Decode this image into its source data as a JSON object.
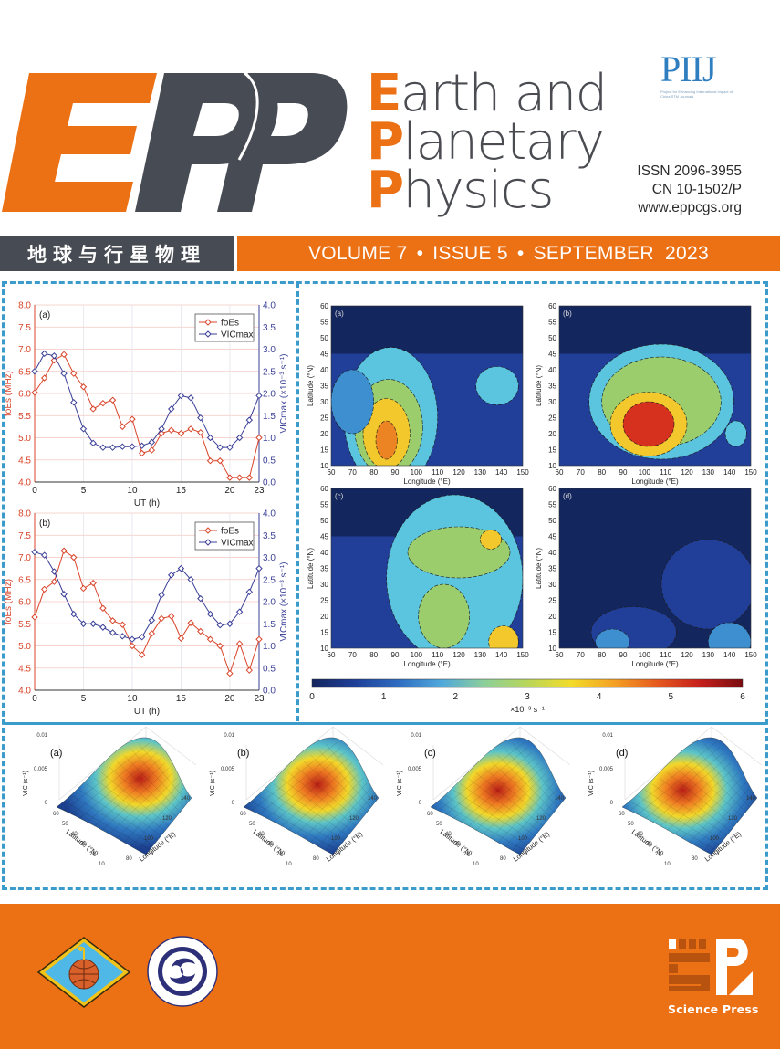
{
  "masthead": {
    "logo_text": "EPP",
    "title_lines": [
      {
        "initial": "E",
        "rest": "arth and"
      },
      {
        "initial": "P",
        "rest": "lanetary"
      },
      {
        "initial": "P",
        "rest": "hysics"
      }
    ],
    "piij_mark": "PIIJ",
    "piij_subtitle": "Project for Enhancing International Impact of China STM Journals",
    "issn": "ISSN 2096-3955",
    "cn": "CN 10-1502/P",
    "website": "www.eppcgs.org"
  },
  "band": {
    "chinese_title": "地球与行星物理",
    "volume": "VOLUME 7",
    "issue": "ISSUE 5",
    "date": "SEPTEMBER  2023",
    "separator": "•"
  },
  "colors": {
    "brand_orange": "#ec7014",
    "brand_gray": "#474b53",
    "frame_blue": "#3b9ccc",
    "foEs_red": "#d9452b",
    "vic_blue": "#3a3f96"
  },
  "footer": {
    "publisher": "Science Press",
    "emblem_1": "Geophysical Society emblem",
    "emblem_2": "Institute of Geology and Geophysics, CAS emblem"
  },
  "chart_data": [
    {
      "type": "line",
      "panel": "(a)",
      "x": [
        0,
        1,
        2,
        3,
        4,
        5,
        6,
        7,
        8,
        9,
        10,
        11,
        12,
        13,
        14,
        15,
        16,
        17,
        18,
        19,
        20,
        21,
        22,
        23
      ],
      "xlabel": "UT (h)",
      "xticks": [
        "0",
        "5",
        "10",
        "15",
        "20",
        "23"
      ],
      "ylabel_left": "foEs (MHz)",
      "ylim_left": [
        4.0,
        8.0
      ],
      "yticks_left": [
        "4.0",
        "4.5",
        "5.0",
        "5.5",
        "6.0",
        "6.5",
        "7.0",
        "7.5",
        "8.0"
      ],
      "ylabel_right": "VICmax (×10⁻³ s⁻¹)",
      "ylim_right": [
        0.0,
        4.0
      ],
      "yticks_right": [
        "0.0",
        "0.5",
        "1.0",
        "1.5",
        "2.0",
        "2.5",
        "3.0",
        "3.5",
        "4.0"
      ],
      "legend": [
        "foEs",
        "VICmax"
      ],
      "legend_position": "upper right",
      "grid": true,
      "series": [
        {
          "name": "foEs",
          "axis": "left",
          "values": [
            6.02,
            6.35,
            6.75,
            6.88,
            6.45,
            6.15,
            5.65,
            5.78,
            5.85,
            5.25,
            5.42,
            4.65,
            4.72,
            5.1,
            5.17,
            5.1,
            5.2,
            5.12,
            4.48,
            4.48,
            4.1,
            4.1,
            4.1,
            5.0
          ]
        },
        {
          "name": "VICmax",
          "axis": "right",
          "values": [
            2.5,
            2.9,
            2.85,
            2.45,
            1.8,
            1.2,
            0.88,
            0.78,
            0.78,
            0.8,
            0.8,
            0.82,
            0.9,
            1.2,
            1.65,
            1.95,
            1.9,
            1.45,
            1.0,
            0.78,
            0.78,
            1.0,
            1.4,
            1.95
          ]
        }
      ]
    },
    {
      "type": "line",
      "panel": "(b)",
      "x": [
        0,
        1,
        2,
        3,
        4,
        5,
        6,
        7,
        8,
        9,
        10,
        11,
        12,
        13,
        14,
        15,
        16,
        17,
        18,
        19,
        20,
        21,
        22,
        23
      ],
      "xlabel": "UT (h)",
      "xticks": [
        "0",
        "5",
        "10",
        "15",
        "20",
        "23"
      ],
      "ylabel_left": "foEs (MHz)",
      "ylim_left": [
        4.0,
        8.0
      ],
      "yticks_left": [
        "4.0",
        "4.5",
        "5.0",
        "5.5",
        "6.0",
        "6.5",
        "7.0",
        "7.5",
        "8.0"
      ],
      "ylabel_right": "VICmax (×10⁻³ s⁻¹)",
      "ylim_right": [
        0.0,
        4.0
      ],
      "yticks_right": [
        "0.0",
        "0.5",
        "1.0",
        "1.5",
        "2.0",
        "2.5",
        "3.0",
        "3.5",
        "4.0"
      ],
      "legend": [
        "foEs",
        "VICmax"
      ],
      "legend_position": "upper right",
      "grid": true,
      "series": [
        {
          "name": "foEs",
          "axis": "left",
          "values": [
            5.65,
            6.28,
            6.45,
            7.15,
            7.0,
            6.3,
            6.42,
            5.85,
            5.57,
            5.48,
            5.0,
            4.8,
            5.28,
            5.62,
            5.67,
            5.17,
            5.52,
            5.33,
            5.15,
            5.0,
            4.38,
            5.05,
            4.45,
            5.15
          ]
        },
        {
          "name": "VICmax",
          "axis": "right",
          "values": [
            3.12,
            3.05,
            2.68,
            2.17,
            1.72,
            1.5,
            1.5,
            1.42,
            1.3,
            1.22,
            1.15,
            1.2,
            1.58,
            2.15,
            2.6,
            2.75,
            2.5,
            2.07,
            1.72,
            1.47,
            1.5,
            1.77,
            2.22,
            2.75
          ]
        }
      ]
    },
    {
      "type": "heatmap",
      "panels": [
        "(a)",
        "(b)",
        "(c)",
        "(d)"
      ],
      "xlabel": "Longitude (°E)",
      "xticks": [
        "60",
        "70",
        "80",
        "90",
        "100",
        "110",
        "120",
        "130",
        "140",
        "150"
      ],
      "ylabel": "Latitude (°N)",
      "yticks": [
        "10",
        "15",
        "20",
        "25",
        "30",
        "35",
        "40",
        "45",
        "50",
        "55",
        "60"
      ],
      "colorbar": {
        "ticks": [
          "0",
          "1",
          "2",
          "3",
          "4",
          "5",
          "6"
        ],
        "label": "×10⁻³ s⁻¹",
        "range": [
          0,
          6
        ]
      },
      "peaks": [
        {
          "panel": "(a)",
          "lon": 88,
          "lat": 18,
          "max_approx": 4.5
        },
        {
          "panel": "(b)",
          "lon": 102,
          "lat": 23,
          "max_approx": 5.0
        },
        {
          "panel": "(c)",
          "lon": 135,
          "lat": 44,
          "max_approx": 4.0
        },
        {
          "panel": "(d)",
          "lon": 130,
          "lat": 35,
          "max_approx": 1.5
        }
      ]
    },
    {
      "type": "surface",
      "panels": [
        "(a)",
        "(b)",
        "(c)",
        "(d)"
      ],
      "zlabel": "VIC (s⁻¹)",
      "zticks": [
        "0",
        "0.005",
        "0.01"
      ],
      "xlabel": "Longitude (°E)",
      "xticks": [
        "80",
        "100",
        "120",
        "140"
      ],
      "ylabel": "Latitude (°N)",
      "yticks": [
        "10",
        "20",
        "30",
        "40",
        "50",
        "60"
      ]
    }
  ]
}
